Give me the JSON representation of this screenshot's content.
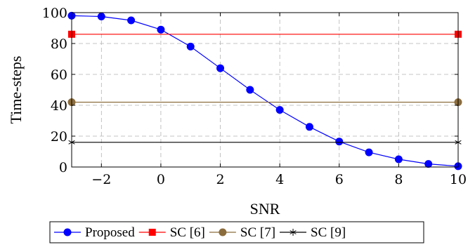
{
  "chart_data": {
    "type": "line",
    "xlabel": "SNR",
    "ylabel": "Time-steps",
    "xlim": [
      -3,
      10
    ],
    "ylim": [
      0,
      100
    ],
    "xticks": [
      -2,
      0,
      2,
      4,
      6,
      8,
      10
    ],
    "xtick_labels": [
      "−2",
      "0",
      "2",
      "4",
      "6",
      "8",
      "10"
    ],
    "yticks": [
      0,
      20,
      40,
      60,
      80,
      100
    ],
    "ytick_labels": [
      "0",
      "20",
      "40",
      "60",
      "80",
      "100"
    ],
    "grid": true,
    "legend_position": "bottom-outside",
    "series": [
      {
        "name": "Proposed",
        "color": "#0000ff",
        "marker": "circle",
        "x": [
          -3,
          -2,
          -1,
          0,
          1,
          2,
          3,
          4,
          5,
          6,
          7,
          8,
          9,
          10
        ],
        "y": [
          98,
          97.5,
          95,
          89,
          78,
          64,
          50,
          37,
          26,
          16.5,
          9.5,
          5,
          2,
          0.5
        ]
      },
      {
        "name": "SC [6]",
        "color": "#ff0000",
        "marker": "square",
        "x": [
          -3,
          10
        ],
        "y": [
          86,
          86
        ]
      },
      {
        "name": "SC [7]",
        "color": "#8b6c3c",
        "marker": "circle",
        "x": [
          -3,
          10
        ],
        "y": [
          42,
          42
        ]
      },
      {
        "name": "SC [9]",
        "color": "#000000",
        "marker": "star",
        "x": [
          -3,
          10
        ],
        "y": [
          16,
          16
        ]
      }
    ]
  }
}
